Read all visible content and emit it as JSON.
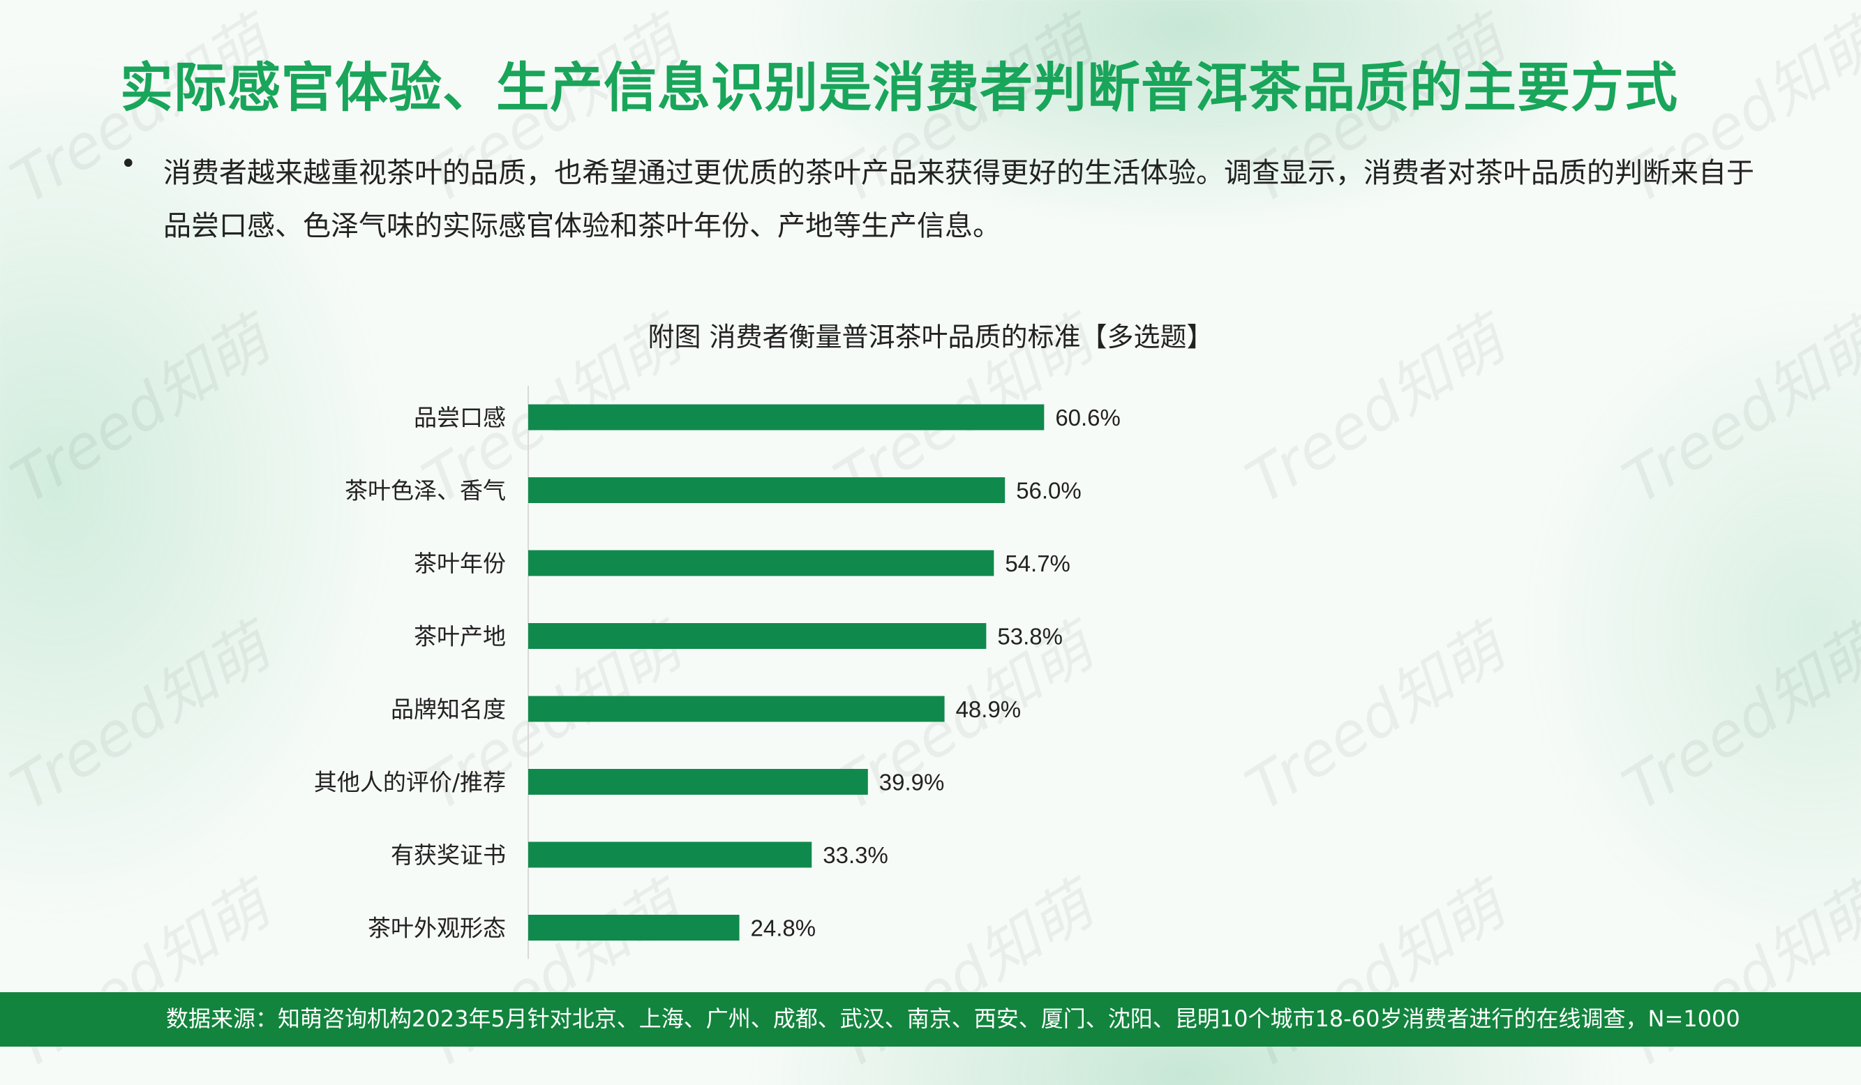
{
  "page": {
    "title": "实际感官体验、生产信息识别是消费者判断普洱茶品质的主要方式",
    "bullet": "•",
    "paragraph": "消费者越来越重视茶叶的品质，也希望通过更优质的茶叶产品来获得更好的生活体验。调查显示，消费者对茶叶品质的判断来自于品尝口感、色泽气味的实际感官体验和茶叶年份、产地等生产信息。",
    "footer": "数据来源：知萌咨询机构2023年5月针对北京、上海、广州、成都、武汉、南京、西安、厦门、沈阳、昆明10个城市18-60岁消费者进行的在线调查，N=1000",
    "watermark": "Treed知萌"
  },
  "colors": {
    "bar": "#0f8a4c",
    "title": "#19a55a",
    "footer_bg": "#12843d"
  },
  "chart_data": {
    "type": "bar",
    "orientation": "horizontal",
    "title": "附图  消费者衡量普洱茶叶品质的标准【多选题】",
    "categories": [
      "品尝口感",
      "茶叶色泽、香气",
      "茶叶年份",
      "茶叶产地",
      "品牌知名度",
      "其他人的评价/推荐",
      "有获奖证书",
      "茶叶外观形态"
    ],
    "values": [
      60.6,
      56.0,
      54.7,
      53.8,
      48.9,
      39.9,
      33.3,
      24.8
    ],
    "data_labels": [
      "60.6%",
      "56.0%",
      "54.7%",
      "53.8%",
      "48.9%",
      "39.9%",
      "33.3%",
      "24.8%"
    ],
    "unit": "%",
    "xlim": [
      0,
      100
    ],
    "grid": false,
    "legend": "none"
  }
}
